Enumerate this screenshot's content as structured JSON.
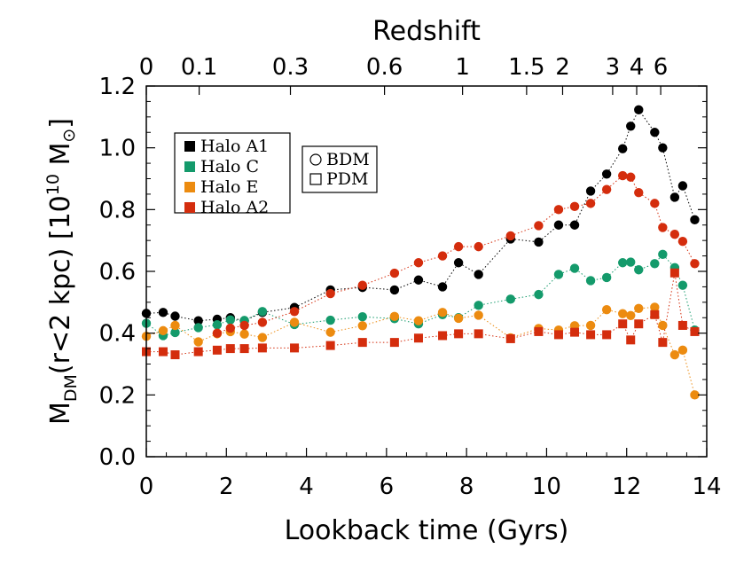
{
  "chart_data": {
    "type": "scatter",
    "xlabel": "Lookback time (Gyrs)",
    "ylabel_parts": {
      "main": "M",
      "sub": "DM",
      "rest": "(r<2 kpc)  [10",
      "sup": "10",
      "unit": " M",
      "sun": "⊙",
      "close": "]"
    },
    "x2label": "Redshift",
    "xlim": [
      0,
      14
    ],
    "ylim": [
      0.0,
      1.2
    ],
    "xticks": [
      0,
      2,
      4,
      6,
      8,
      10,
      12,
      14
    ],
    "yticks": [
      "0.0",
      "0.2",
      "0.4",
      "0.6",
      "0.8",
      "1.0",
      "1.2"
    ],
    "redshift_ticks": [
      {
        "label": "0",
        "t": 0.0
      },
      {
        "label": "0.1",
        "t": 1.32
      },
      {
        "label": "0.3",
        "t": 3.6
      },
      {
        "label": "0.6",
        "t": 5.95
      },
      {
        "label": "1",
        "t": 7.9
      },
      {
        "label": "1.5",
        "t": 9.5
      },
      {
        "label": "2",
        "t": 10.4
      },
      {
        "label": "3",
        "t": 11.65
      },
      {
        "label": "4",
        "t": 12.25
      },
      {
        "label": "6",
        "t": 12.85
      }
    ],
    "legend_halos": [
      {
        "name": "Halo A1",
        "color": "#000000"
      },
      {
        "name": "Halo C",
        "color": "#149a6b"
      },
      {
        "name": "Halo E",
        "color": "#ec8b10"
      },
      {
        "name": "Halo A2",
        "color": "#d42d0d"
      }
    ],
    "legend_markers": [
      {
        "label": "BDM",
        "shape": "circle"
      },
      {
        "label": "PDM",
        "shape": "square"
      }
    ],
    "series": [
      {
        "name": "Halo A1",
        "marker": "circle",
        "color": "#000000",
        "x": [
          0.0,
          0.42,
          0.72,
          1.3,
          1.77,
          2.1,
          2.45,
          2.9,
          3.7,
          4.6,
          5.4,
          6.2,
          6.8,
          7.4,
          7.8,
          8.3,
          9.1,
          9.8,
          10.3,
          10.7,
          11.1,
          11.5,
          11.9,
          12.1,
          12.3,
          12.7,
          12.9,
          13.2,
          13.4,
          13.7
        ],
        "y": [
          0.464,
          0.467,
          0.455,
          0.44,
          0.445,
          0.45,
          0.44,
          0.467,
          0.483,
          0.54,
          0.548,
          0.54,
          0.572,
          0.55,
          0.628,
          0.59,
          0.705,
          0.695,
          0.75,
          0.75,
          0.86,
          0.915,
          0.997,
          1.07,
          1.123,
          1.05,
          1.0,
          0.84,
          0.877,
          0.767
        ]
      },
      {
        "name": "Halo C",
        "marker": "circle",
        "color": "#149a6b",
        "x": [
          0.0,
          0.42,
          0.72,
          1.3,
          1.77,
          2.1,
          2.45,
          2.9,
          3.7,
          4.6,
          5.4,
          6.2,
          6.8,
          7.4,
          7.8,
          8.3,
          9.1,
          9.8,
          10.3,
          10.7,
          11.1,
          11.5,
          11.9,
          12.1,
          12.3,
          12.7,
          12.9,
          13.2,
          13.4,
          13.7
        ],
        "y": [
          0.432,
          0.392,
          0.402,
          0.418,
          0.427,
          0.443,
          0.441,
          0.47,
          0.428,
          0.442,
          0.453,
          0.447,
          0.43,
          0.46,
          0.45,
          0.49,
          0.51,
          0.525,
          0.59,
          0.61,
          0.57,
          0.58,
          0.628,
          0.63,
          0.605,
          0.625,
          0.655,
          0.612,
          0.555,
          0.41
        ]
      },
      {
        "name": "Halo E",
        "marker": "circle",
        "color": "#ec8b10",
        "x": [
          0.0,
          0.42,
          0.72,
          1.3,
          1.77,
          2.1,
          2.45,
          2.9,
          3.7,
          4.6,
          5.4,
          6.2,
          6.8,
          7.4,
          7.8,
          8.3,
          9.1,
          9.8,
          10.3,
          10.7,
          11.1,
          11.5,
          11.9,
          12.1,
          12.3,
          12.7,
          12.9,
          13.2,
          13.4,
          13.7
        ],
        "y": [
          0.39,
          0.408,
          0.425,
          0.372,
          0.398,
          0.405,
          0.397,
          0.386,
          0.435,
          0.403,
          0.424,
          0.454,
          0.44,
          0.467,
          0.448,
          0.458,
          0.385,
          0.415,
          0.41,
          0.424,
          0.425,
          0.476,
          0.463,
          0.457,
          0.48,
          0.484,
          0.425,
          0.33,
          0.345,
          0.2
        ]
      },
      {
        "name": "Halo A2",
        "marker": "circle",
        "color": "#d42d0d",
        "x": [
          1.77,
          2.1,
          2.45,
          2.9,
          3.7,
          4.6,
          5.4,
          6.2,
          6.8,
          7.4,
          7.8,
          8.3,
          9.1,
          9.8,
          10.3,
          10.7,
          11.1,
          11.5,
          11.9,
          12.1,
          12.3,
          12.7,
          12.9,
          13.2,
          13.4,
          13.7
        ],
        "y": [
          0.4,
          0.416,
          0.425,
          0.435,
          0.47,
          0.528,
          0.555,
          0.594,
          0.628,
          0.65,
          0.68,
          0.68,
          0.715,
          0.748,
          0.8,
          0.81,
          0.82,
          0.865,
          0.91,
          0.905,
          0.855,
          0.82,
          0.742,
          0.72,
          0.697,
          0.625
        ]
      },
      {
        "name": "Halo A2",
        "marker": "square",
        "color": "#d42d0d",
        "x": [
          0.0,
          0.42,
          0.72,
          1.3,
          1.77,
          2.1,
          2.45,
          2.9,
          3.7,
          4.6,
          5.4,
          6.2,
          6.8,
          7.4,
          7.8,
          8.3,
          9.1,
          9.8,
          10.3,
          10.7,
          11.1,
          11.5,
          11.9,
          12.1,
          12.3,
          12.7,
          12.9,
          13.2,
          13.4,
          13.7
        ],
        "y": [
          0.34,
          0.34,
          0.33,
          0.34,
          0.345,
          0.35,
          0.35,
          0.352,
          0.352,
          0.36,
          0.37,
          0.37,
          0.384,
          0.392,
          0.398,
          0.398,
          0.382,
          0.405,
          0.395,
          0.403,
          0.395,
          0.395,
          0.43,
          0.378,
          0.43,
          0.46,
          0.37,
          0.595,
          0.425,
          0.405
        ]
      }
    ]
  }
}
